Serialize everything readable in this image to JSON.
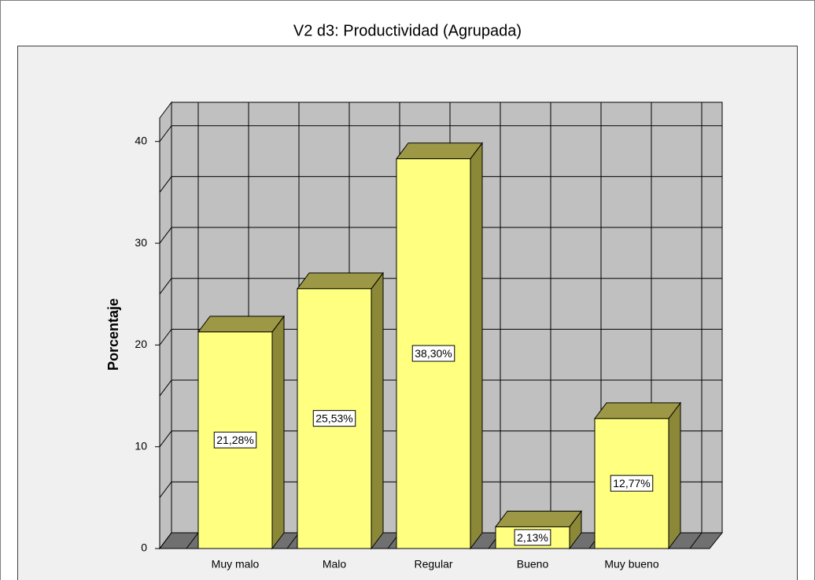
{
  "chart_data": {
    "type": "bar3d",
    "title": "V2 d3: Productividad (Agrupada)",
    "y_label": "Porcentaje",
    "categories": [
      "Muy malo",
      "Malo",
      "Regular",
      "Bueno",
      "Muy bueno"
    ],
    "values": [
      21.28,
      25.53,
      38.3,
      2.13,
      12.77
    ],
    "value_labels": [
      "21,28%",
      "25,53%",
      "38,30%",
      "2,13%",
      "12,77%"
    ],
    "color": "#ffff80",
    "ylim": [
      0,
      42.3
    ],
    "yticks": [
      0,
      10,
      20,
      30,
      40
    ],
    "grid": true
  }
}
